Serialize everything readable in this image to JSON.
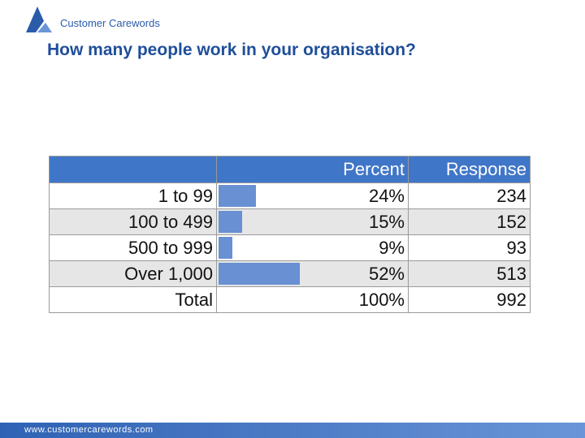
{
  "header": {
    "logo": "Customer Carewords",
    "title": "How many people work in your organisation?"
  },
  "table": {
    "columns": [
      "",
      "Percent",
      "Response"
    ],
    "rows": [
      {
        "label": "1 to 99",
        "percent": {
          "value": 24,
          "label": "24%"
        },
        "response": 234
      },
      {
        "label": "100 to 499",
        "percent": {
          "value": 15,
          "label": "15%"
        },
        "response": 152
      },
      {
        "label": "500 to 999",
        "percent": {
          "value": 9,
          "label": "9%"
        },
        "response": 93
      },
      {
        "label": "Over 1,000",
        "percent": {
          "value": 52,
          "label": "52%"
        },
        "response": 513
      }
    ],
    "total": {
      "label": "Total",
      "percent": {
        "value": 100,
        "label": "100%"
      },
      "response": 992
    }
  },
  "footer": "www.customercarewords.com"
}
